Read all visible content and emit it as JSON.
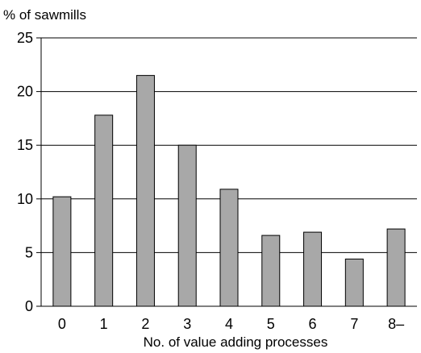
{
  "chart_data": {
    "type": "bar",
    "title": "",
    "ylabel": "% of sawmills",
    "xlabel": "No. of value adding processes",
    "categories": [
      "0",
      "1",
      "2",
      "3",
      "4",
      "5",
      "6",
      "7",
      "8–"
    ],
    "values": [
      10.2,
      17.8,
      21.5,
      15.0,
      10.9,
      6.6,
      6.9,
      4.4,
      7.2
    ],
    "ylim": [
      0,
      25
    ],
    "yticks": [
      0,
      5,
      10,
      15,
      20,
      25
    ],
    "grid": true,
    "colors": {
      "bar_fill": "#a8a8a8",
      "bar_stroke": "#000000",
      "grid": "#000000"
    }
  }
}
